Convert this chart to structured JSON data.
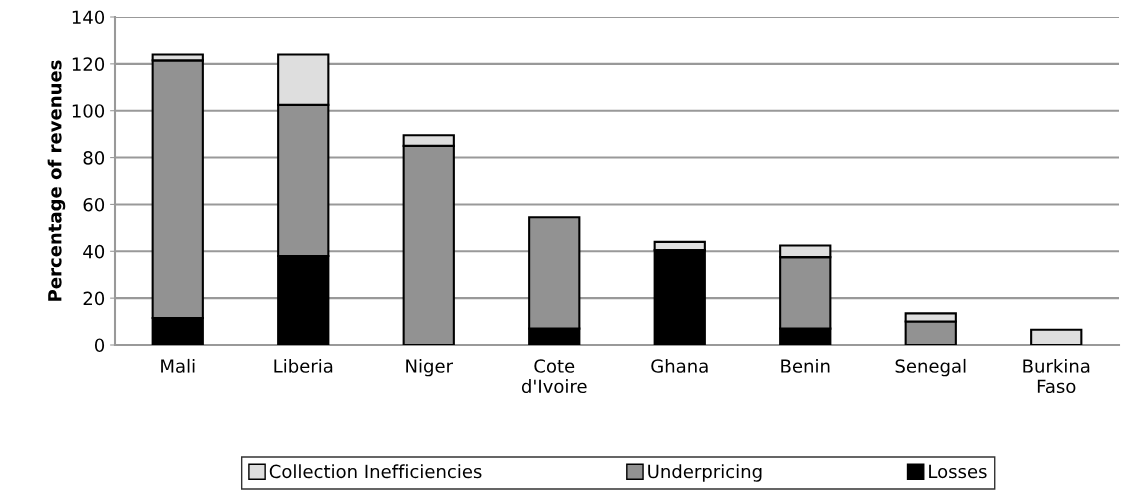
{
  "chart_data": {
    "type": "bar",
    "stacked": true,
    "ylabel": "Percentage of revenues",
    "categories": [
      "Mali",
      "Liberia",
      "Niger",
      "Cote\nd'Ivoire",
      "Ghana",
      "Benin",
      "Senegal",
      "Burkina\nFaso"
    ],
    "series": [
      {
        "name": "Losses",
        "color": "#000000",
        "values": [
          11.5,
          38,
          0,
          7,
          40.5,
          7,
          null,
          0
        ]
      },
      {
        "name": "Underpricing",
        "color": "#929292",
        "values": [
          110,
          64.5,
          85,
          47.5,
          null,
          30.5,
          10,
          0
        ]
      },
      {
        "name": "Collection Inefficiencies",
        "color": "#dedede",
        "values": [
          2.5,
          21.5,
          4.5,
          0,
          3.5,
          5,
          3.5,
          6.5
        ]
      }
    ],
    "ylim": [
      0,
      140
    ],
    "yticks": [
      0,
      20,
      40,
      60,
      80,
      100,
      120,
      140
    ],
    "grid": "y",
    "legend": "bottom"
  }
}
